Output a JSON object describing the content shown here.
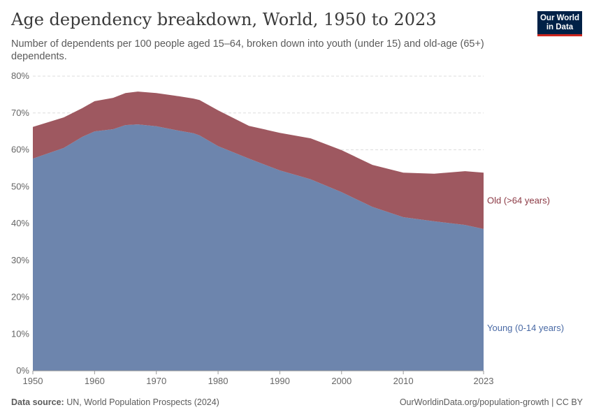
{
  "header": {
    "title": "Age dependency breakdown, World, 1950 to 2023",
    "subtitle": "Number of dependents per 100 people aged 15–64, broken down into youth (under 15) and old-age (65+) dependents.",
    "logo": "Our World in Data"
  },
  "footer": {
    "source_label": "Data source:",
    "source": "UN, World Population Prospects (2024)",
    "right": "OurWorldinData.org/population-growth | CC BY"
  },
  "chart_data": {
    "type": "area",
    "stacked": true,
    "title": "Age dependency breakdown, World, 1950 to 2023",
    "xlim": [
      1950,
      2023
    ],
    "ylim": [
      0,
      80
    ],
    "x_ticks": [
      "1950",
      "1960",
      "1970",
      "1980",
      "1990",
      "2000",
      "2010",
      "2023"
    ],
    "y_ticks": [
      "0%",
      "10%",
      "20%",
      "30%",
      "40%",
      "50%",
      "60%",
      "70%",
      "80%"
    ],
    "grid": true,
    "x": [
      1950,
      1955,
      1958,
      1960,
      1963,
      1965,
      1967,
      1970,
      1973,
      1976,
      1977,
      1980,
      1985,
      1990,
      1995,
      2000,
      2005,
      2010,
      2015,
      2020,
      2023
    ],
    "series": [
      {
        "name": "Young (0-14 years)",
        "color": "#6d85ad",
        "values": [
          57.6,
          60.5,
          63.5,
          65.0,
          65.6,
          66.7,
          66.9,
          66.4,
          65.4,
          64.5,
          63.9,
          61.0,
          57.6,
          54.4,
          52.0,
          48.5,
          44.5,
          41.7,
          40.6,
          39.6,
          38.5
        ]
      },
      {
        "name": "Old (>64 years)",
        "color": "#9e5860",
        "values": [
          8.6,
          8.3,
          7.8,
          8.2,
          8.5,
          8.7,
          8.9,
          9.0,
          9.3,
          9.4,
          9.6,
          9.7,
          8.9,
          10.2,
          11.1,
          11.4,
          11.4,
          12.1,
          12.9,
          14.6,
          15.3
        ]
      }
    ]
  }
}
